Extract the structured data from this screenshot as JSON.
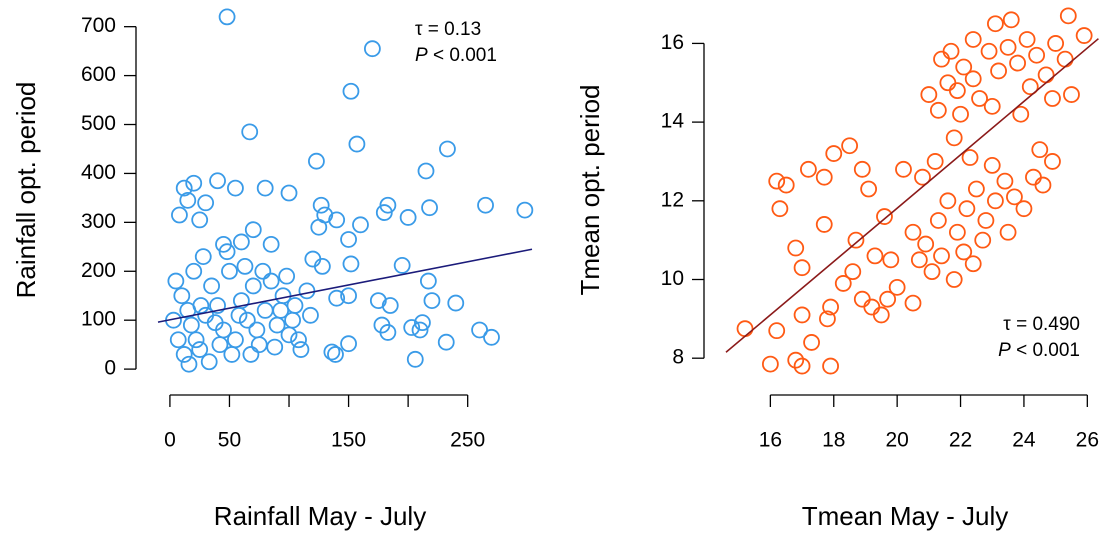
{
  "chart_data": [
    {
      "type": "scatter",
      "color": "#3a9be8",
      "line_color": "#1b1b7a",
      "xlabel": "Rainfall May - July",
      "ylabel": "Rainfall opt. period",
      "annotation": {
        "tau": "τ = 0.13",
        "p": "P",
        "p_rest": "< 0.001"
      },
      "xlim": [
        -10,
        304
      ],
      "ylim": [
        -10,
        730
      ],
      "xticks": [
        0,
        50,
        150,
        250
      ],
      "minor_xticks": [
        100,
        200
      ],
      "yticks": [
        0,
        100,
        200,
        300,
        400,
        500,
        600,
        700
      ],
      "trend": {
        "x": [
          -10,
          304
        ],
        "y": [
          96,
          245
        ]
      },
      "x": [
        48,
        170,
        152,
        157,
        67,
        123,
        233,
        215,
        298,
        265,
        218,
        200,
        180,
        183,
        127,
        130,
        140,
        125,
        160,
        150,
        120,
        128,
        152,
        195,
        217,
        220,
        240,
        185,
        175,
        140,
        150,
        178,
        183,
        212,
        203,
        210,
        206,
        232,
        260,
        270,
        136,
        139,
        150,
        100,
        80,
        55,
        20,
        12,
        15,
        40,
        30,
        25,
        8,
        45,
        60,
        70,
        85,
        5,
        10,
        15,
        18,
        22,
        25,
        30,
        35,
        40,
        45,
        50,
        55,
        60,
        65,
        70,
        75,
        80,
        85,
        90,
        95,
        100,
        105,
        110,
        115,
        3,
        7,
        12,
        16,
        20,
        28,
        33,
        38,
        48,
        52,
        58,
        63,
        68,
        73,
        78,
        88,
        93,
        98,
        103,
        108,
        118,
        26,
        42
      ],
      "y": [
        720,
        655,
        568,
        460,
        485,
        425,
        450,
        405,
        325,
        335,
        330,
        310,
        320,
        335,
        335,
        315,
        305,
        290,
        295,
        265,
        225,
        210,
        215,
        212,
        180,
        140,
        135,
        130,
        140,
        145,
        150,
        90,
        75,
        95,
        85,
        80,
        20,
        55,
        80,
        65,
        35,
        30,
        52,
        360,
        370,
        370,
        380,
        370,
        345,
        385,
        340,
        305,
        315,
        255,
        260,
        285,
        255,
        180,
        150,
        120,
        90,
        60,
        40,
        110,
        170,
        130,
        80,
        200,
        60,
        140,
        100,
        170,
        50,
        120,
        180,
        90,
        150,
        70,
        130,
        40,
        160,
        100,
        60,
        30,
        10,
        200,
        230,
        15,
        95,
        240,
        30,
        110,
        210,
        30,
        80,
        200,
        45,
        120,
        190,
        100,
        60,
        110,
        130,
        50
      ]
    },
    {
      "type": "scatter",
      "color": "#ff5a14",
      "line_color": "#8b1a1a",
      "xlabel": "Tmean May - July",
      "ylabel": "Tmean opt. period",
      "annotation": {
        "tau": "τ = 0.490",
        "p": "P",
        "p_rest": "< 0.001"
      },
      "xlim": [
        14.6,
        26.4
      ],
      "ylim": [
        7.7,
        16.9
      ],
      "xticks": [
        16,
        18,
        20,
        22,
        24,
        26
      ],
      "yticks": [
        8,
        10,
        12,
        14,
        16
      ],
      "trend": {
        "x": [
          14.6,
          26.35
        ],
        "y": [
          8.15,
          16.12
        ]
      },
      "x": [
        15.2,
        16,
        16.2,
        16.8,
        17,
        17.9,
        17.3,
        17,
        17.8,
        17.9,
        18.3,
        18.6,
        18.9,
        19.2,
        19.5,
        19.7,
        20,
        20.5,
        19.8,
        19.3,
        18.7,
        17.7,
        17.0,
        16.8,
        16.3,
        16.5,
        16.2,
        17.2,
        17.7,
        18,
        18.5,
        18.9,
        19.1,
        19.6,
        20.2,
        20.8,
        21.2,
        21.8,
        22.3,
        20.5,
        20.9,
        21.3,
        21.6,
        21.9,
        22.2,
        22.5,
        22.8,
        23.1,
        23.4,
        23.7,
        24.0,
        24.3,
        24.6,
        24.9,
        24.5,
        21.1,
        21.4,
        21.8,
        22.1,
        22.4,
        20.7,
        23,
        23.5,
        22.7,
        21,
        21.3,
        21.6,
        21.9,
        22.1,
        22.4,
        22.6,
        22.9,
        23.2,
        23.5,
        23.8,
        24.1,
        24.4,
        24.7,
        25.0,
        25.3,
        25.5,
        25.9,
        25.4,
        23.1,
        23.6,
        22.4,
        21.7,
        22.0,
        23.0,
        24.2,
        24.9,
        21.4,
        23.9
      ],
      "y": [
        8.75,
        7.85,
        8.7,
        7.95,
        7.8,
        7.8,
        8.4,
        9.1,
        9.0,
        9.3,
        9.9,
        10.2,
        9.5,
        9.3,
        9.1,
        9.5,
        9.8,
        9.4,
        10.5,
        10.6,
        11.0,
        11.4,
        10.3,
        10.8,
        11.8,
        12.4,
        12.5,
        12.8,
        12.6,
        13.2,
        13.4,
        12.8,
        12.3,
        11.6,
        12.8,
        12.6,
        13.0,
        13.6,
        13.1,
        11.2,
        10.9,
        11.5,
        12.0,
        11.2,
        11.8,
        12.3,
        11.5,
        12.0,
        12.5,
        12.1,
        11.8,
        12.6,
        12.4,
        13.0,
        13.3,
        10.2,
        10.6,
        10.0,
        10.7,
        10.4,
        10.5,
        12.9,
        11.2,
        11.0,
        14.7,
        14.3,
        15.0,
        14.8,
        15.4,
        15.1,
        14.6,
        15.8,
        15.3,
        15.9,
        15.5,
        16.1,
        15.7,
        15.2,
        16.0,
        15.6,
        14.7,
        16.2,
        16.7,
        16.5,
        16.6,
        16.1,
        15.8,
        14.2,
        14.4,
        14.9,
        14.6,
        15.6,
        14.2
      ]
    }
  ]
}
